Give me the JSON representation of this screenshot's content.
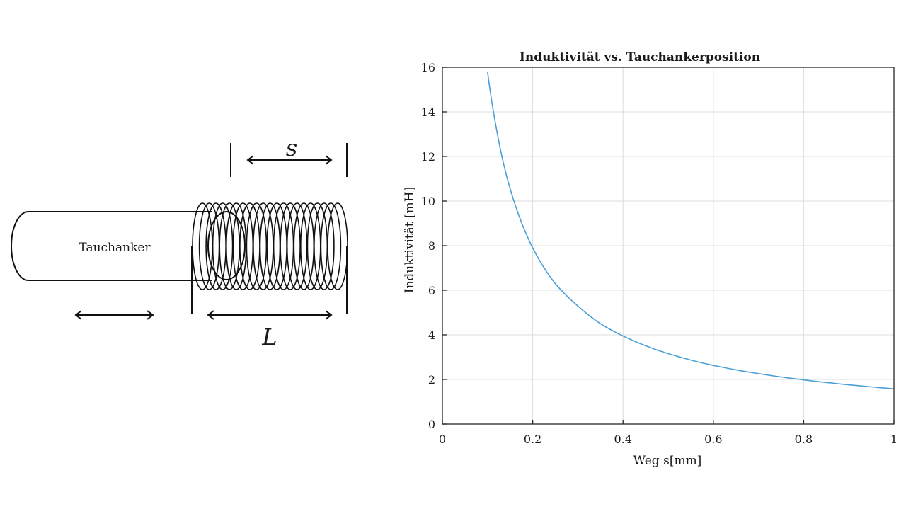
{
  "diagram": {
    "plunger_label": "Tauchanker",
    "stroke_symbol": "s",
    "length_symbol": "L"
  },
  "chart_data": {
    "type": "line",
    "title": "Induktivität vs. Tauchankerposition",
    "xlabel": "Weg s[mm]",
    "ylabel": "Induktivität [mH]",
    "xlim": [
      0,
      1
    ],
    "ylim": [
      0,
      16
    ],
    "x_ticks": [
      "0",
      "0.2",
      "0.4",
      "0.6",
      "0.8",
      "1"
    ],
    "y_ticks": [
      "0",
      "2",
      "4",
      "6",
      "8",
      "10",
      "12",
      "14",
      "16"
    ],
    "grid": true,
    "series": [
      {
        "color": "#4a9fd8",
        "x": [
          0.1,
          0.12,
          0.14,
          0.16,
          0.18,
          0.2,
          0.25,
          0.3,
          0.35,
          0.4,
          0.5,
          0.6,
          0.7,
          0.8,
          0.9,
          1.0
        ],
        "y": [
          15.8,
          13.2,
          11.3,
          9.9,
          8.8,
          7.9,
          6.3,
          5.3,
          4.5,
          3.95,
          3.16,
          2.63,
          2.26,
          1.98,
          1.76,
          1.58
        ]
      }
    ]
  }
}
